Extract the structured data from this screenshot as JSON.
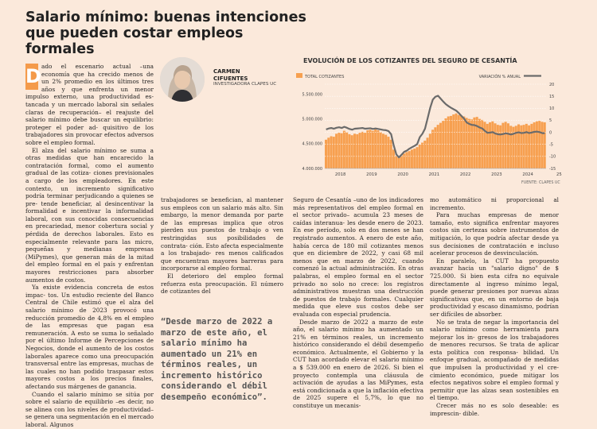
{
  "headline": "Salario mínimo: buenas intenciones que pueden costar empleos formales",
  "author": {
    "name": "CARMEN CIFUENTES",
    "role": "INVESTIGADORA CLAPES UC"
  },
  "dropcap": "D",
  "columns": [
    [
      "ado el escenario actual –una economía que ha crecido menos de un 2% promedio en los últimos tres años y que enfrenta un menor impulso externo, una productividad es- tancada y un mercado laboral sin señales claras de recuperación– el reajuste del salario mínimo debe buscar un equilibrio: proteger el poder ad- quisitivo de los trabajadores sin provocar efectos adversos sobre el empleo formal.",
      "El alza del salario mínimo se suma a otras medidas que han encarecido la contratación formal, como el aumento gradual de las cotiza- ciones previsionales a cargo de los empleadores. En este contexto, un incremento significativo podría terminar perjudicando a quienes se pre- tende beneficiar, al desincentivar la formalidad e incentivar la informalidad laboral, con sus conocidas consecuencias en precariedad, menor cobertura social y pérdida de derechos laborales. Esto es especialmente relevante para las micro, pequeñas y medianas empresas (MiPymes), que generan más de la mitad del empleo formal en el país y enfrentan mayores restricciones para absorber aumentos de costos.",
      "Ya existe evidencia concreta de estos impac- tos. Un estudio reciente del Banco Central de Chile estimó que el alza del salario mínimo de 2023 provocó una reducción promedio de 4,8% en el empleo de las empresas que pagan esa remuneración. A esto se suma lo señalado por el último Informe de Percepciones de Negocios, donde el aumento de los costos laborales aparece como una preocupación transversal entre las empresas, muchas de las cuales no han podido traspasar estos mayores costos a los precios finales, afectando sus márgenes de ganancia.",
      "Cuando el salario mínimo se sitúa por sobre el salario de equilibrio –es decir, no se alinea con los niveles de productividad– se genera una segmentación en el mercado laboral. Algunos"
    ],
    [
      "trabajadores se benefician, al mantener sus empleos con un salario más alto. Sin embargo, la menor demanda por parte de las empresas implica que otros pierden sus puestos de trabajo o ven restringidas sus posibilidades de contrata- ción. Esto afecta especialmente a los trabajado- res menos calificados que encuentran mayores barreras para incorporarse al empleo formal.",
      "El deterioro del empleo formal refuerza esta preocupación. El número de cotizantes del"
    ],
    [
      "Seguro de Cesantía –uno de los indicadores más representativos del empleo formal en el sector privado– acumula 23 meses de caídas interanua- les desde enero de 2023. En ese período, solo en dos meses se han registrado aumentos. A enero de este año, había cerca de 180 mil cotizantes menos que en diciembre de 2022, y casi 68 mil menos que en marzo de 2022, cuando comenzó la actual administración. En otras palabras, el empleo formal en el sector privado no solo no crece: los registros administrativos muestran una destrucción de puestos de trabajo formales. Cualquier medida que eleve sus costos debe ser evaluada con especial prudencia.",
      "Desde marzo de 2022 a marzo de este año, el salario mínimo ha aumentado un 21% en términos reales, un incremento histórico considerando el débil desempeño económico. Actualmente, el Gobierno y la CUT han acordado elevar el salario mínimo a $ 539.000 en enero de 2026. Si bien el proyecto contempla una cláusula de activación de ayudas a las MiPymes, esta está condicionada a que la inflación efectiva de 2025 supere el 5,7%, lo que no constituye un mecanis-"
    ],
    [
      "mo automático ni proporcional al incremento.",
      "Para muchas empresas de menor tamaño, esto significa enfrentar mayores costos sin certezas sobre instrumentos de mitigación, lo que podría afectar desde ya sus decisiones de contratación e incluso acelerar procesos de desvinculación.",
      "En paralelo, la CUT ha propuesto avanzar hacia un \"salario digno\" de $ 725.000. Si bien esta cifra no equivale directamente al ingreso mínimo legal, puede generar presiones por nuevas alzas significativas que, en un entorno de baja productividad y escaso dinamismo, podrían ser difíciles de absorber.",
      "No se trata de negar la importancia del salario mínimo como herramienta para mejorar los in- gresos de los trabajadores de menores recursos. Se trata de aplicar esta política con responsa- bilidad. Un enfoque gradual, acompañado de medidas que impulsen la productividad y el cre- cimiento económico, puede mitigar los efectos negativos sobre el empleo formal y permitir que las alzas sean sostenibles en el tiempo.",
      "Crecer más no es solo deseable: es imprescin- dible."
    ]
  ],
  "quote": "“Desde marzo de 2022 a marzo de este año, el salario mínimo ha aumentado un 21% en términos reales, un incremento histórico considerando el débil desempeño económico”.",
  "chart_data": {
    "type": "bar",
    "title": "EVOLUCIÓN DE LOS COTIZANTES DEL SEGURO DE CESANTÍA",
    "source": "FUENTE: CLAPES UC",
    "legend_position": "top",
    "grid": true,
    "x_ticks": [
      "2018",
      "2019",
      "2020",
      "2021",
      "2022",
      "2023",
      "2024",
      "25"
    ],
    "y_left_ticks": [
      "4.000.000",
      "4.500.000",
      "5.000.000",
      "5.500.000"
    ],
    "y_left_lim": [
      4000000,
      5700000
    ],
    "y_right_ticks": [
      "-15",
      "-10",
      "-5",
      "0",
      "5",
      "10",
      "15",
      "20"
    ],
    "y_right_lim": [
      -15,
      20
    ],
    "colors": {
      "bars": "#f7a050",
      "line": "#6b6b6b"
    },
    "series": [
      {
        "name": "TOTAL COTIZANTES",
        "kind": "bar",
        "axis": "left",
        "values": [
          4580000,
          4620000,
          4650000,
          4640000,
          4700000,
          4720000,
          4710000,
          4760000,
          4730000,
          4690000,
          4670000,
          4700000,
          4690000,
          4720000,
          4740000,
          4720000,
          4770000,
          4780000,
          4760000,
          4790000,
          4770000,
          4730000,
          4700000,
          4680000,
          4640000,
          4580000,
          4380000,
          4250000,
          4220000,
          4260000,
          4300000,
          4330000,
          4350000,
          4380000,
          4400000,
          4430000,
          4480000,
          4520000,
          4560000,
          4620000,
          4700000,
          4780000,
          4830000,
          4880000,
          4920000,
          4960000,
          5010000,
          5050000,
          5060000,
          5090000,
          5110000,
          5080000,
          5070000,
          5050000,
          5020000,
          5000000,
          4990000,
          5030000,
          5040000,
          5000000,
          4980000,
          4940000,
          4900000,
          4930000,
          4950000,
          4910000,
          4880000,
          4870000,
          4920000,
          4940000,
          4910000,
          4860000,
          4840000,
          4860000,
          4890000,
          4870000,
          4880000,
          4900000,
          4870000,
          4900000,
          4930000,
          4950000,
          4960000,
          4940000,
          4930000
        ]
      },
      {
        "name": "VARIACIÓN % ANUAL",
        "kind": "line",
        "axis": "right",
        "values": [
          1.2,
          1.6,
          1.8,
          1.5,
          1.9,
          2.1,
          1.8,
          2.3,
          1.9,
          1.4,
          1.1,
          1.5,
          1.6,
          1.7,
          1.8,
          1.5,
          1.6,
          1.7,
          1.4,
          1.6,
          1.4,
          1.2,
          1.0,
          0.9,
          0.5,
          -0.8,
          -5.5,
          -9.2,
          -10.4,
          -9.3,
          -8.1,
          -7.6,
          -6.8,
          -6.2,
          -5.6,
          -4.9,
          -2.0,
          -0.6,
          1.5,
          5.8,
          10.2,
          13.6,
          14.8,
          15.2,
          14.0,
          12.8,
          11.7,
          10.9,
          10.2,
          9.6,
          9.0,
          8.0,
          6.8,
          5.7,
          4.1,
          3.5,
          3.1,
          3.0,
          2.6,
          2.0,
          1.6,
          0.6,
          -0.2,
          -0.1,
          0.1,
          -0.5,
          -0.8,
          -0.9,
          -0.7,
          -0.4,
          -0.6,
          -0.9,
          -0.6,
          -0.2,
          0.0,
          -0.3,
          -0.2,
          0.1,
          -0.3,
          -0.1,
          0.2,
          0.3,
          0.1,
          -0.3,
          -0.4
        ]
      }
    ]
  }
}
